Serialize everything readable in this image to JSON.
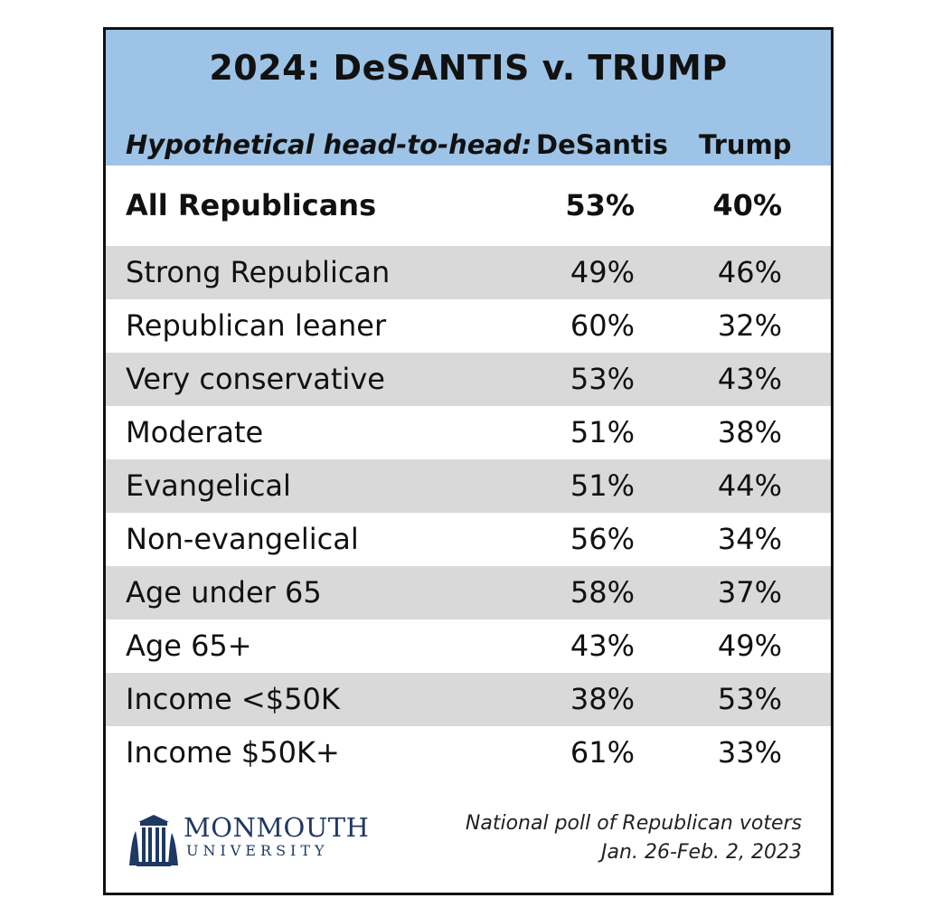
{
  "chart_data": {
    "type": "table",
    "title": "2024: DeSANTIS v. TRUMP",
    "columns": [
      "Hypothetical head-to-head:",
      "DeSantis",
      "Trump"
    ],
    "rows": [
      {
        "label": "All Republicans",
        "desantis": "53%",
        "trump": "40%",
        "bold": true
      },
      {
        "label": "Strong Republican",
        "desantis": "49%",
        "trump": "46%"
      },
      {
        "label": "Republican leaner",
        "desantis": "60%",
        "trump": "32%"
      },
      {
        "label": "Very conservative",
        "desantis": "53%",
        "trump": "43%"
      },
      {
        "label": "Moderate",
        "desantis": "51%",
        "trump": "38%"
      },
      {
        "label": "Evangelical",
        "desantis": "51%",
        "trump": "44%"
      },
      {
        "label": "Non-evangelical",
        "desantis": "56%",
        "trump": "34%"
      },
      {
        "label": "Age under 65",
        "desantis": "58%",
        "trump": "37%"
      },
      {
        "label": "Age 65+",
        "desantis": "43%",
        "trump": "49%"
      },
      {
        "label": "Income <$50K",
        "desantis": "38%",
        "trump": "53%"
      },
      {
        "label": "Income $50K+",
        "desantis": "61%",
        "trump": "33%"
      }
    ],
    "source": [
      "National poll of Republican voters",
      "Jan. 26-Feb. 2, 2023"
    ],
    "colors": {
      "header": "#9dc3e6",
      "stripe": "#d9d9d9",
      "logo": "#1f3864"
    }
  },
  "logo": {
    "name": "MONMOUTH",
    "sub": "UNIVERSITY",
    "icon": "university-building-icon"
  }
}
